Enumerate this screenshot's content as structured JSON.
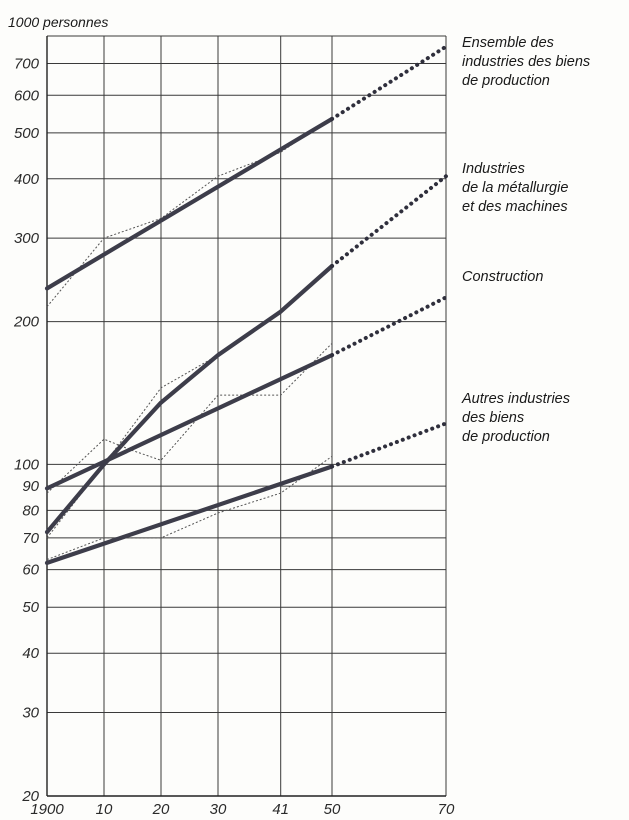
{
  "chart_data": {
    "type": "line",
    "title": "",
    "unit_label": "1000 personnes",
    "xlabel": "",
    "ylabel": "",
    "y_scale": "log",
    "ylim": [
      20,
      800
    ],
    "xlim": [
      1900,
      1970
    ],
    "grid": true,
    "x_ticks": [
      {
        "value": 1900,
        "label": "1900"
      },
      {
        "value": 1910,
        "label": "10"
      },
      {
        "value": 1920,
        "label": "20"
      },
      {
        "value": 1930,
        "label": "30"
      },
      {
        "value": 1941,
        "label": "41"
      },
      {
        "value": 1950,
        "label": "50"
      },
      {
        "value": 1970,
        "label": "70"
      }
    ],
    "y_ticks": [
      {
        "value": 20,
        "label": "20"
      },
      {
        "value": 30,
        "label": "30"
      },
      {
        "value": 40,
        "label": "40"
      },
      {
        "value": 50,
        "label": "50"
      },
      {
        "value": 60,
        "label": "60"
      },
      {
        "value": 70,
        "label": "70"
      },
      {
        "value": 80,
        "label": "80"
      },
      {
        "value": 90,
        "label": "90"
      },
      {
        "value": 100,
        "label": "100"
      },
      {
        "value": 200,
        "label": "200"
      },
      {
        "value": 300,
        "label": "300"
      },
      {
        "value": 400,
        "label": "400"
      },
      {
        "value": 500,
        "label": "500"
      },
      {
        "value": 600,
        "label": "600"
      },
      {
        "value": 700,
        "label": "700"
      }
    ],
    "series": [
      {
        "name": "Ensemble des\nindustries des biens\nde production",
        "actual": {
          "x": [
            1900,
            1910,
            1920,
            1930,
            1941,
            1950
          ],
          "y": [
            215,
            300,
            330,
            405,
            455,
            540
          ]
        },
        "trend": {
          "x": [
            1900,
            1950
          ],
          "y": [
            235,
            535
          ]
        },
        "projection": {
          "x": [
            1950,
            1970
          ],
          "y": [
            535,
            760
          ]
        }
      },
      {
        "name": "Industries\nde la métallurgie\net des machines",
        "actual": {
          "x": [
            1900,
            1910,
            1920,
            1930,
            1941,
            1950
          ],
          "y": [
            70,
            100,
            145,
            170,
            210,
            260
          ]
        },
        "trend": {
          "x": [
            1900,
            1910,
            1920,
            1930,
            1941,
            1950
          ],
          "y": [
            72,
            100,
            135,
            170,
            210,
            262
          ]
        },
        "projection": {
          "x": [
            1950,
            1970
          ],
          "y": [
            262,
            405
          ]
        }
      },
      {
        "name": "Construction",
        "actual": {
          "x": [
            1900,
            1910,
            1915,
            1920,
            1930,
            1941,
            1950
          ],
          "y": [
            87,
            113,
            107,
            102,
            140,
            140,
            180
          ]
        },
        "trend": {
          "x": [
            1900,
            1950
          ],
          "y": [
            89,
            170
          ]
        },
        "projection": {
          "x": [
            1950,
            1970
          ],
          "y": [
            170,
            225
          ]
        }
      },
      {
        "name": "Autres industries\ndes biens\nde production",
        "actual": {
          "x": [
            1900,
            1910,
            1920,
            1930,
            1941,
            1950
          ],
          "y": [
            63,
            70,
            70,
            79,
            87,
            104
          ]
        },
        "trend": {
          "x": [
            1900,
            1950
          ],
          "y": [
            62,
            99
          ]
        },
        "projection": {
          "x": [
            1950,
            1970
          ],
          "y": [
            99,
            122
          ]
        }
      }
    ]
  }
}
